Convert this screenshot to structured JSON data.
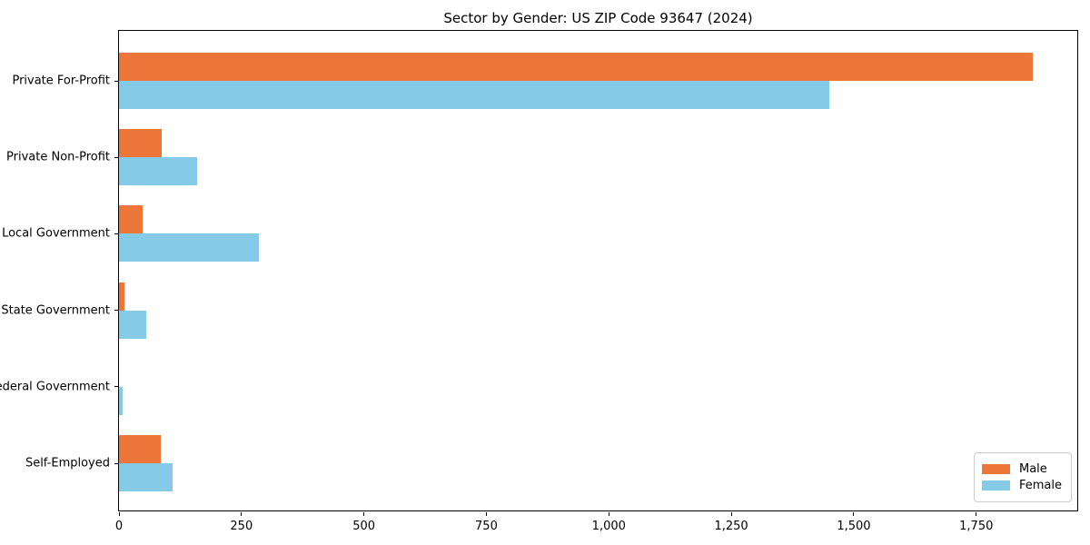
{
  "chart_data": {
    "type": "bar",
    "orientation": "horizontal",
    "title": "Sector by Gender: US ZIP Code 93647 (2024)",
    "categories": [
      "Private For-Profit",
      "Private Non-Profit",
      "Local Government",
      "State Government",
      "Federal Government",
      "Self-Employed"
    ],
    "series": [
      {
        "name": "Male",
        "color": "#ec7639",
        "values": [
          1865,
          87,
          48,
          11,
          0,
          85
        ]
      },
      {
        "name": "Female",
        "color": "#85cbe8",
        "values": [
          1450,
          160,
          285,
          55,
          8,
          110
        ]
      }
    ],
    "xlabel": "",
    "ylabel": "",
    "xlim": [
      0,
      1960
    ],
    "xticks": [
      0,
      250,
      500,
      750,
      1000,
      1250,
      1500,
      1750
    ],
    "xtick_labels": [
      "0",
      "250",
      "500",
      "750",
      "1,000",
      "1,250",
      "1,500",
      "1,750"
    ],
    "grid": false,
    "legend": {
      "position": "lower right"
    }
  },
  "colors": {
    "male": "#ec7639",
    "female": "#85cbe8",
    "spine": "#000000",
    "legend_border": "#cccccc"
  }
}
